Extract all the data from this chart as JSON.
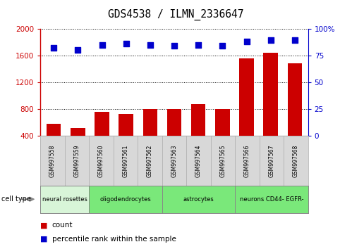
{
  "title": "GDS4538 / ILMN_2336647",
  "samples": [
    "GSM997558",
    "GSM997559",
    "GSM997560",
    "GSM997561",
    "GSM997562",
    "GSM997563",
    "GSM997564",
    "GSM997565",
    "GSM997566",
    "GSM997567",
    "GSM997568"
  ],
  "counts": [
    580,
    520,
    760,
    730,
    800,
    800,
    870,
    800,
    1560,
    1640,
    1480
  ],
  "percentile_ranks": [
    82,
    80,
    85,
    86,
    85,
    84,
    85,
    84,
    88,
    89,
    89
  ],
  "ylim_left": [
    400,
    2000
  ],
  "ylim_right": [
    0,
    100
  ],
  "yticks_left": [
    400,
    800,
    1200,
    1600,
    2000
  ],
  "yticks_right": [
    0,
    25,
    50,
    75,
    100
  ],
  "groups": [
    {
      "label": "neural rosettes",
      "start": 0,
      "end": 2,
      "color": "#d8f5d8"
    },
    {
      "label": "oligodendrocytes",
      "start": 2,
      "end": 5,
      "color": "#7ae87a"
    },
    {
      "label": "astrocytes",
      "start": 5,
      "end": 8,
      "color": "#7ae87a"
    },
    {
      "label": "neurons CD44- EGFR-",
      "start": 8,
      "end": 11,
      "color": "#7ae87a"
    }
  ],
  "bar_color": "#cc0000",
  "dot_color": "#0000cc",
  "left_axis_color": "#cc0000",
  "right_axis_color": "#0000cc",
  "background_color": "#ffffff",
  "grid_color": "#000000",
  "label_count": "count",
  "label_percentile": "percentile rank within the sample",
  "gray_sample_bg": "#d8d8d8",
  "cell_type_label": "cell type"
}
